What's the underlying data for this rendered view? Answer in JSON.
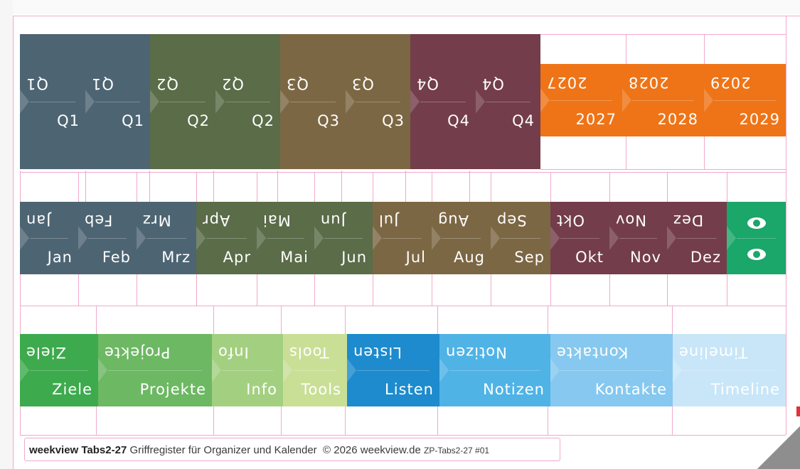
{
  "quarters": {
    "labels": [
      "Q1",
      "Q1",
      "Q2",
      "Q2",
      "Q3",
      "Q3",
      "Q4",
      "Q4"
    ],
    "colors": [
      "#4d6473",
      "#4d6473",
      "#5a6c48",
      "#5a6c48",
      "#7c6744",
      "#7c6744",
      "#733d4b",
      "#733d4b"
    ]
  },
  "years": {
    "labels": [
      "2027",
      "2028",
      "2029"
    ],
    "color": "#ee7417"
  },
  "months": {
    "labels": [
      "Jan",
      "Feb",
      "Mrz",
      "Apr",
      "Mai",
      "Jun",
      "Jul",
      "Aug",
      "Sep",
      "Okt",
      "Nov",
      "Dez"
    ],
    "colors": [
      "#4d6473",
      "#4d6473",
      "#4d6473",
      "#5a6c48",
      "#5a6c48",
      "#5a6c48",
      "#7c6744",
      "#7c6744",
      "#7c6744",
      "#733d4b",
      "#733d4b",
      "#733d4b"
    ]
  },
  "eye_tab": {
    "icon": "eye-icon",
    "color": "#1ba66a"
  },
  "categories": {
    "labels": [
      "Ziele",
      "Projekte",
      "Info",
      "Tools",
      "Listen",
      "Notizen",
      "Kontakte",
      "Timeline"
    ],
    "colors": [
      "#3daa4d",
      "#6db863",
      "#a3d080",
      "#c9df96",
      "#1d8bcd",
      "#4fb3e6",
      "#86c8ef",
      "#c8e6f8"
    ]
  },
  "footer": {
    "brand": "weekview Tabs2-27",
    "desc": "Griffregister für Organizer und Kalender",
    "copyright": "© 2026 weekview.de",
    "code": "ZP-Tabs2-27 #01"
  }
}
